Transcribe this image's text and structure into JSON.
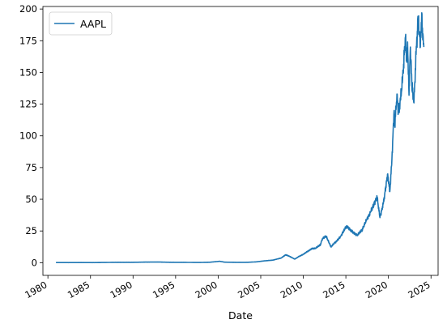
{
  "chart_data": {
    "type": "line",
    "title": "",
    "xlabel": "Date",
    "ylabel": "",
    "xlim": [
      "1979-06-01",
      "2025-11-01"
    ],
    "ylim": [
      -10,
      202
    ],
    "grid": false,
    "legend_position": "top-left",
    "x_ticks": [
      "1980",
      "1985",
      "1990",
      "1995",
      "2000",
      "2005",
      "2010",
      "2015",
      "2020",
      "2025"
    ],
    "y_ticks": [
      0,
      25,
      50,
      75,
      100,
      125,
      150,
      175,
      200
    ],
    "series": [
      {
        "name": "AAPL",
        "color": "#1f77b4",
        "points": [
          [
            "1980-12-12",
            0.1
          ],
          [
            "1982-06-01",
            0.08
          ],
          [
            "1984-01-01",
            0.1
          ],
          [
            "1985-06-01",
            0.07
          ],
          [
            "1987-01-01",
            0.2
          ],
          [
            "1988-01-01",
            0.3
          ],
          [
            "1990-01-01",
            0.3
          ],
          [
            "1991-06-01",
            0.45
          ],
          [
            "1993-01-01",
            0.5
          ],
          [
            "1994-06-01",
            0.3
          ],
          [
            "1996-01-01",
            0.25
          ],
          [
            "1997-09-01",
            0.15
          ],
          [
            "1999-01-01",
            0.35
          ],
          [
            "1999-12-01",
            0.9
          ],
          [
            "2000-03-01",
            1.1
          ],
          [
            "2000-10-01",
            0.4
          ],
          [
            "2001-06-01",
            0.35
          ],
          [
            "2002-06-01",
            0.25
          ],
          [
            "2003-06-01",
            0.3
          ],
          [
            "2004-06-01",
            0.6
          ],
          [
            "2005-06-01",
            1.4
          ],
          [
            "2006-06-01",
            2.0
          ],
          [
            "2007-06-01",
            3.7
          ],
          [
            "2007-12-01",
            6.2
          ],
          [
            "2008-05-01",
            5.2
          ],
          [
            "2009-01-01",
            2.8
          ],
          [
            "2009-06-01",
            4.6
          ],
          [
            "2010-01-01",
            6.6
          ],
          [
            "2010-06-01",
            8.5
          ],
          [
            "2011-01-01",
            11.0
          ],
          [
            "2011-06-01",
            11.3
          ],
          [
            "2012-01-01",
            14.0
          ],
          [
            "2012-04-01",
            19.0
          ],
          [
            "2012-09-01",
            21.0
          ],
          [
            "2013-04-01",
            12.5
          ],
          [
            "2013-09-01",
            15.5
          ],
          [
            "2014-01-01",
            17.5
          ],
          [
            "2014-06-01",
            21.0
          ],
          [
            "2015-02-01",
            29.0
          ],
          [
            "2015-08-01",
            25.5
          ],
          [
            "2016-05-01",
            21.5
          ],
          [
            "2016-12-01",
            26.0
          ],
          [
            "2017-06-01",
            33.5
          ],
          [
            "2017-12-01",
            40.0
          ],
          [
            "2018-09-01",
            52.0
          ],
          [
            "2019-01-01",
            35.5
          ],
          [
            "2019-06-01",
            47.0
          ],
          [
            "2019-12-01",
            70.0
          ],
          [
            "2020-03-01",
            56.0
          ],
          [
            "2020-06-01",
            82.0
          ],
          [
            "2020-09-01",
            120.0
          ],
          [
            "2020-10-01",
            108.0
          ],
          [
            "2021-01-01",
            133.0
          ],
          [
            "2021-03-01",
            118.0
          ],
          [
            "2021-06-01",
            128.0
          ],
          [
            "2021-09-01",
            145.0
          ],
          [
            "2022-01-01",
            178.0
          ],
          [
            "2022-03-01",
            158.0
          ],
          [
            "2022-04-01",
            174.0
          ],
          [
            "2022-06-01",
            132.0
          ],
          [
            "2022-08-01",
            170.0
          ],
          [
            "2022-10-01",
            140.0
          ],
          [
            "2023-01-01",
            126.0
          ],
          [
            "2023-04-01",
            164.0
          ],
          [
            "2023-07-01",
            194.0
          ],
          [
            "2023-10-01",
            170.0
          ],
          [
            "2023-12-01",
            197.0
          ],
          [
            "2024-01-01",
            185.0
          ],
          [
            "2024-02-01",
            178.0
          ],
          [
            "2024-03-01",
            170.0
          ]
        ]
      }
    ]
  }
}
